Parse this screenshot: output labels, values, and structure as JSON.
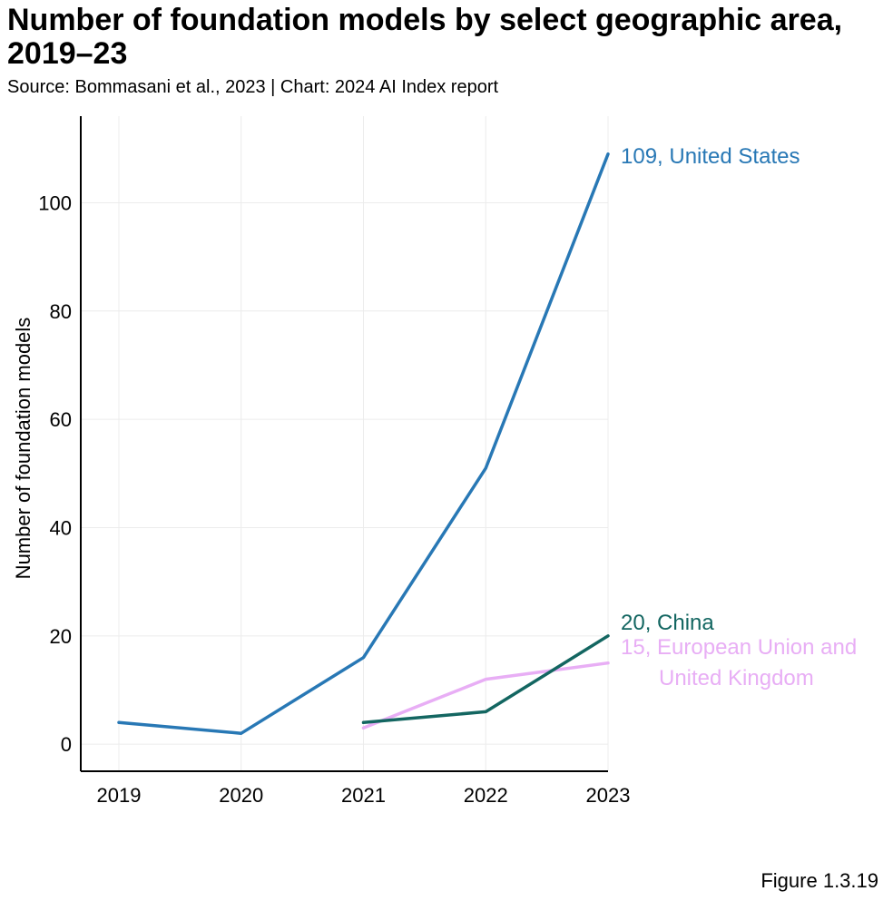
{
  "header": {
    "title": "Number of foundation models by select geographic area, 2019–23",
    "subtitle": "Source: Bommasani et al., 2023 | Chart: 2024 AI Index report"
  },
  "footer": {
    "figure_label": "Figure 1.3.19"
  },
  "chart_data": {
    "type": "line",
    "title": "Number of foundation models by select geographic area, 2019–23",
    "xlabel": "",
    "ylabel": "Number of foundation models",
    "x": [
      2019,
      2020,
      2021,
      2022,
      2023
    ],
    "x_tick_labels": [
      "2019",
      "2020",
      "2021",
      "2022",
      "2023"
    ],
    "y_ticks": [
      0,
      20,
      40,
      60,
      80,
      100
    ],
    "y_tick_labels": [
      "0",
      "20",
      "40",
      "60",
      "80",
      "100"
    ],
    "ylim": [
      -5,
      116
    ],
    "grid": true,
    "series": [
      {
        "name": "United States",
        "color": "#2878b5",
        "x": [
          2019,
          2020,
          2021,
          2022,
          2023
        ],
        "values": [
          4,
          2,
          16,
          51,
          109
        ],
        "end_label_lines": [
          "109, United States"
        ]
      },
      {
        "name": "European Union and United Kingdom",
        "color": "#e8aef5",
        "x": [
          2021,
          2022,
          2023
        ],
        "values": [
          3,
          12,
          15
        ],
        "end_label_lines": [
          "15, European Union and",
          "United Kingdom"
        ]
      },
      {
        "name": "China",
        "color": "#136661",
        "x": [
          2021,
          2022,
          2023
        ],
        "values": [
          4,
          6,
          20
        ],
        "end_label_lines": [
          "20, China"
        ]
      }
    ]
  }
}
